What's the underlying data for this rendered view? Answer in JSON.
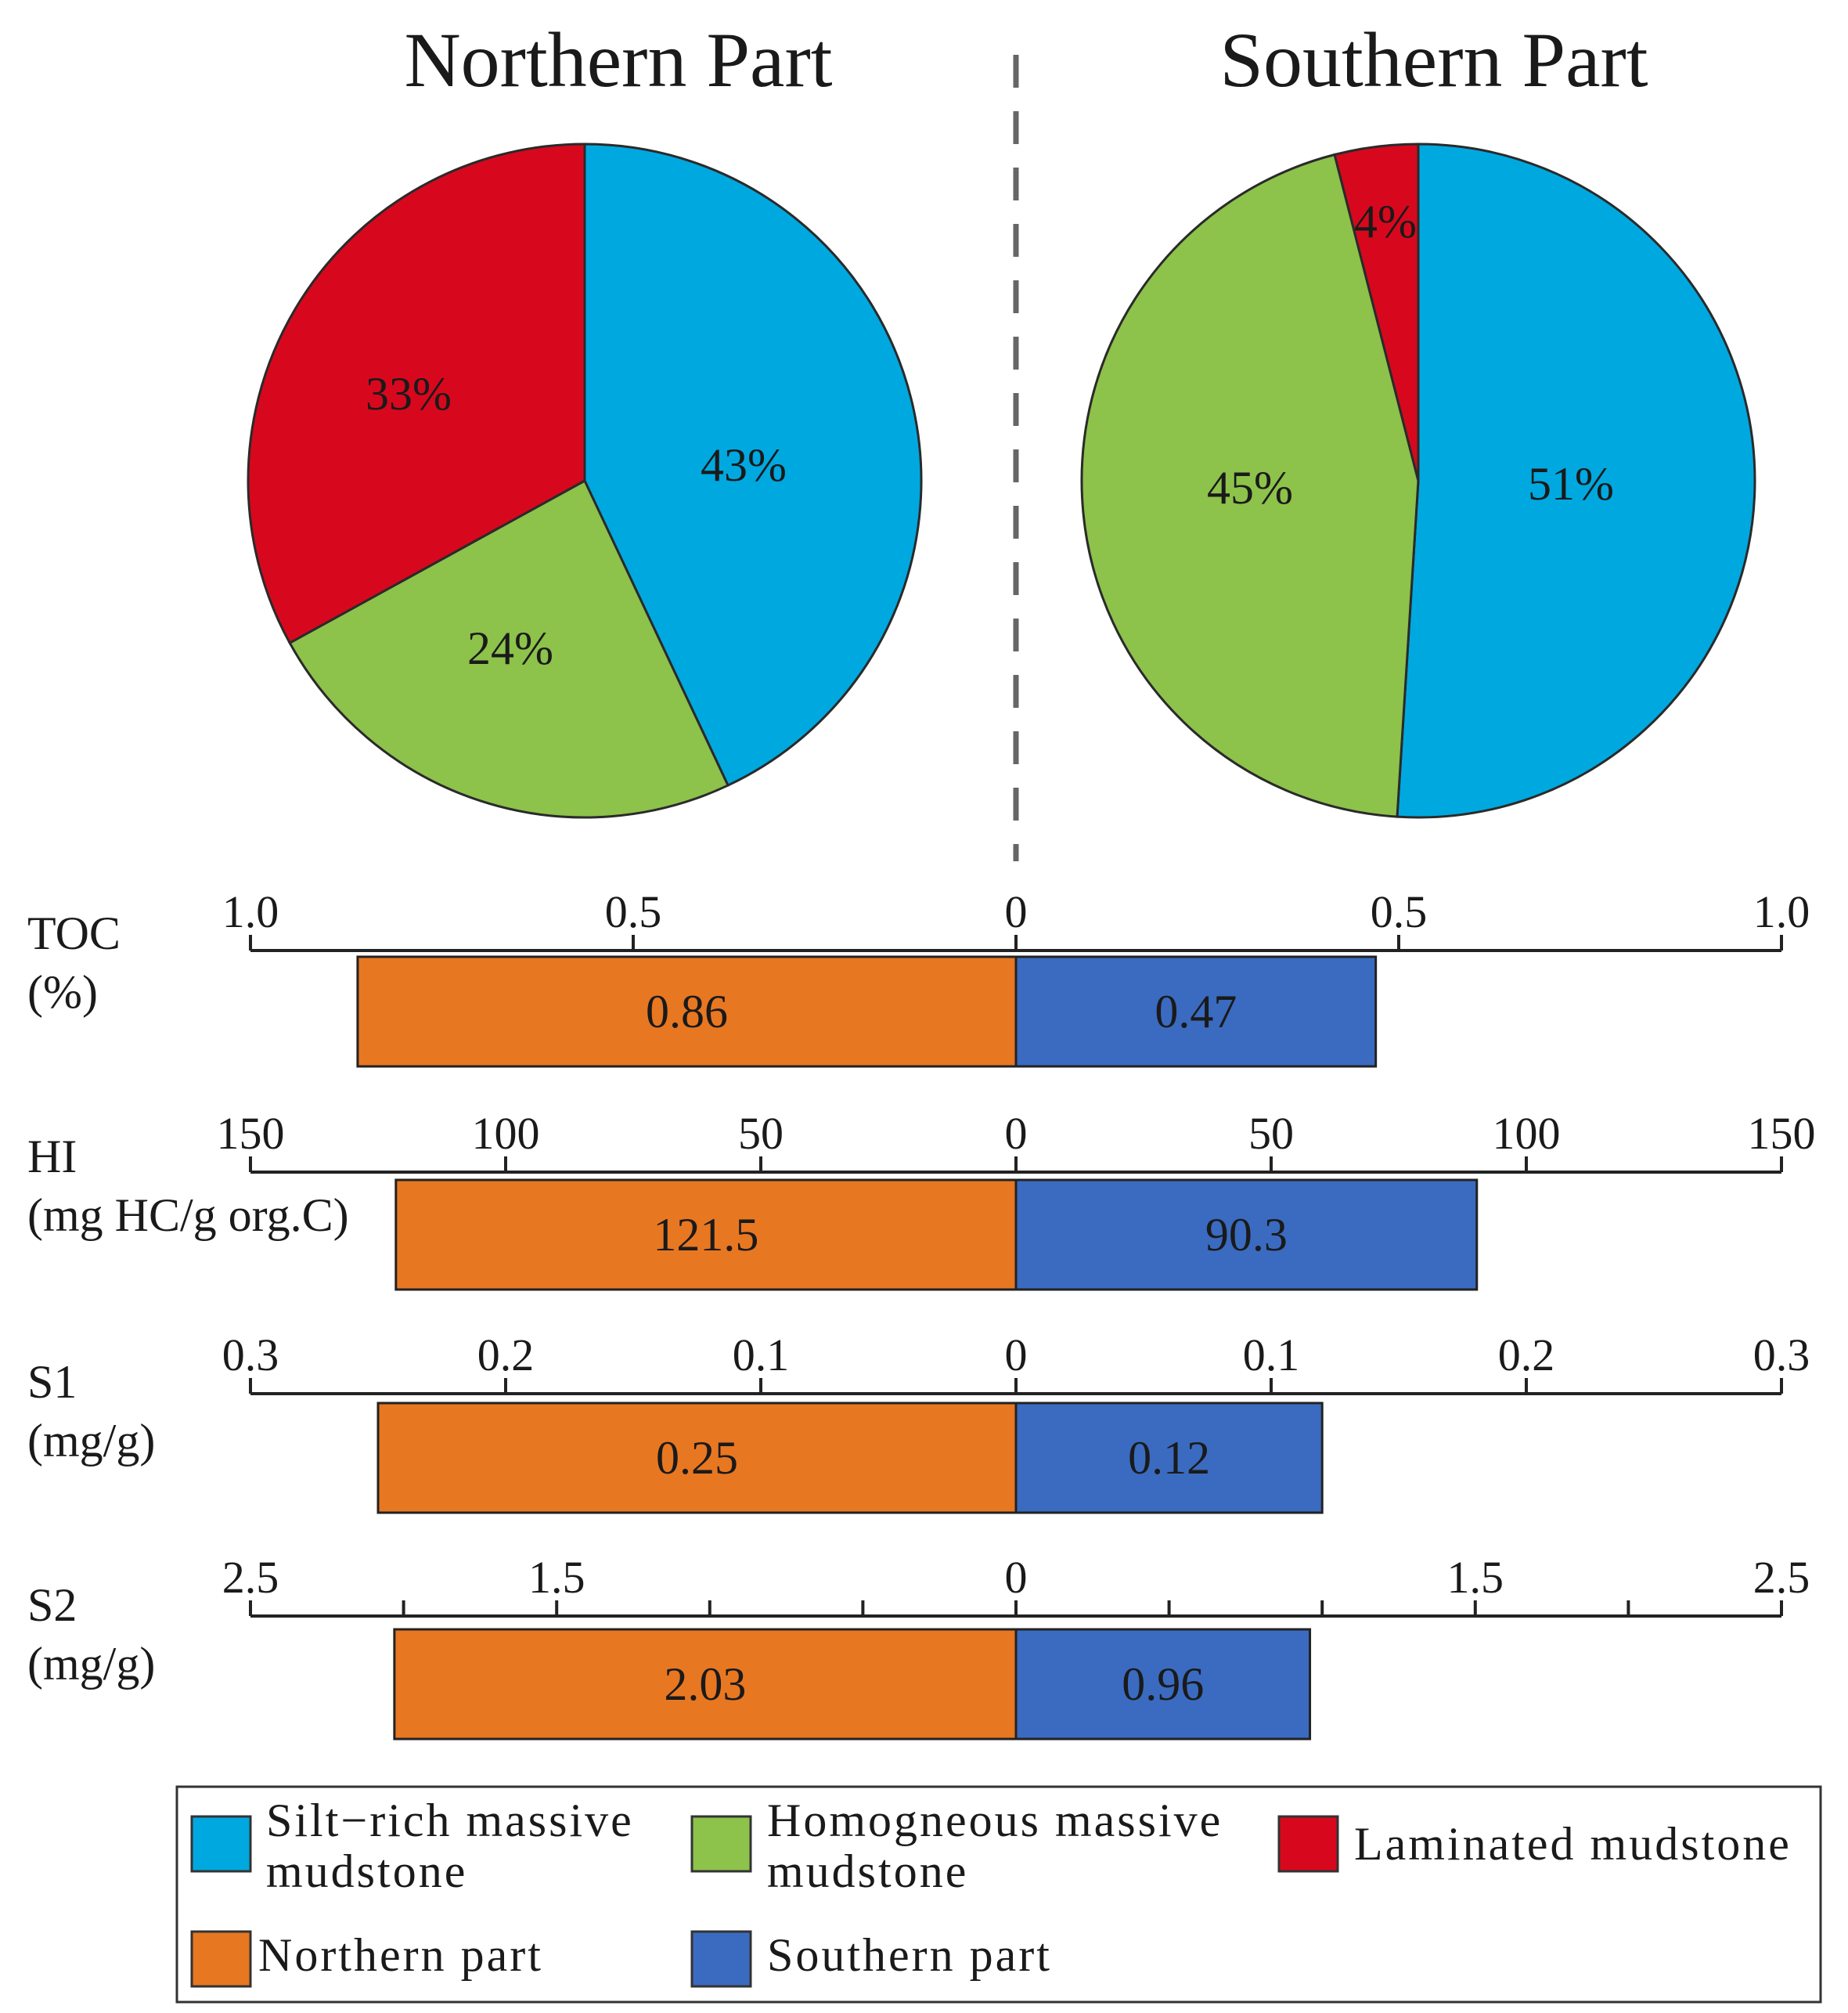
{
  "chart_data": [
    {
      "type": "pie",
      "title": "Northern Part",
      "slices": [
        {
          "label": "Silt-rich massive mudstone",
          "value": 43,
          "display": "43%",
          "color": "#00a8e0"
        },
        {
          "label": "Homogneous massive mudstone",
          "value": 24,
          "display": "24%",
          "color": "#8dc24b"
        },
        {
          "label": "Laminated mudstone",
          "value": 33,
          "display": "33%",
          "color": "#d7081d"
        }
      ]
    },
    {
      "type": "pie",
      "title": "Southern Part",
      "slices": [
        {
          "label": "Silt-rich massive mudstone",
          "value": 51,
          "display": "51%",
          "color": "#00a8e0"
        },
        {
          "label": "Homogneous massive mudstone",
          "value": 45,
          "display": "45%",
          "color": "#8dc24b"
        },
        {
          "label": "Laminated mudstone",
          "value": 4,
          "display": "4%",
          "color": "#d7081d"
        }
      ]
    },
    {
      "type": "bar",
      "orientation": "horizontal-diverging",
      "bars": [
        {
          "name": "TOC",
          "label_line1": "TOC",
          "label_line2": "(%)",
          "max": 1.0,
          "tick_values": [
            0.5,
            1.0
          ],
          "minor_values": [],
          "tick_labels_left": [
            "1.0",
            "0.5",
            "0"
          ],
          "tick_labels_right": [
            "0.5",
            "1.0"
          ],
          "north": 0.86,
          "north_display": "0.86",
          "south": 0.47,
          "south_display": "0.47"
        },
        {
          "name": "HI",
          "label_line1": "HI",
          "label_line2": "(mg HC/g org.C)",
          "max": 150,
          "tick_values": [
            50,
            100,
            150
          ],
          "minor_values": [],
          "tick_labels_left": [
            "150",
            "100",
            "50",
            "0"
          ],
          "tick_labels_right": [
            "50",
            "100",
            "150"
          ],
          "north": 121.5,
          "north_display": "121.5",
          "south": 90.3,
          "south_display": "90.3"
        },
        {
          "name": "S1",
          "label_line1": "S1",
          "label_line2": "(mg/g)",
          "max": 0.3,
          "tick_values": [
            0.1,
            0.2,
            0.3
          ],
          "minor_values": [],
          "tick_labels_left": [
            "0.3",
            "0.2",
            "0.1",
            "0"
          ],
          "tick_labels_right": [
            "0.1",
            "0.2",
            "0.3"
          ],
          "north": 0.25,
          "north_display": "0.25",
          "south": 0.12,
          "south_display": "0.12"
        },
        {
          "name": "S2",
          "label_line1": "S2",
          "label_line2": "(mg/g)",
          "max": 2.5,
          "tick_values": [
            1.5,
            2.5
          ],
          "minor_values": [
            0.5,
            1.0,
            2.0
          ],
          "tick_labels_left": [
            "2.5",
            "1.5",
            "0"
          ],
          "tick_labels_right": [
            "1.5",
            "2.5"
          ],
          "north": 2.03,
          "north_display": "2.03",
          "south": 0.96,
          "south_display": "0.96"
        }
      ],
      "series": [
        {
          "name": "Northern part",
          "color": "#e87722"
        },
        {
          "name": "Southern part",
          "color": "#3a6bc0"
        }
      ]
    }
  ],
  "legend": {
    "items": [
      {
        "line1": "Silt−rich  massive",
        "line2": "mudstone",
        "color": "#00a8e0"
      },
      {
        "line1": "Homogneous  massive",
        "line2": "mudstone",
        "color": "#8dc24b"
      },
      {
        "line1": "Laminated mudstone",
        "line2": "",
        "color": "#d7081d"
      },
      {
        "line1": "Northern part",
        "line2": "",
        "color": "#e87722"
      },
      {
        "line1": "Southern part",
        "line2": "",
        "color": "#3a6bc0"
      }
    ]
  }
}
